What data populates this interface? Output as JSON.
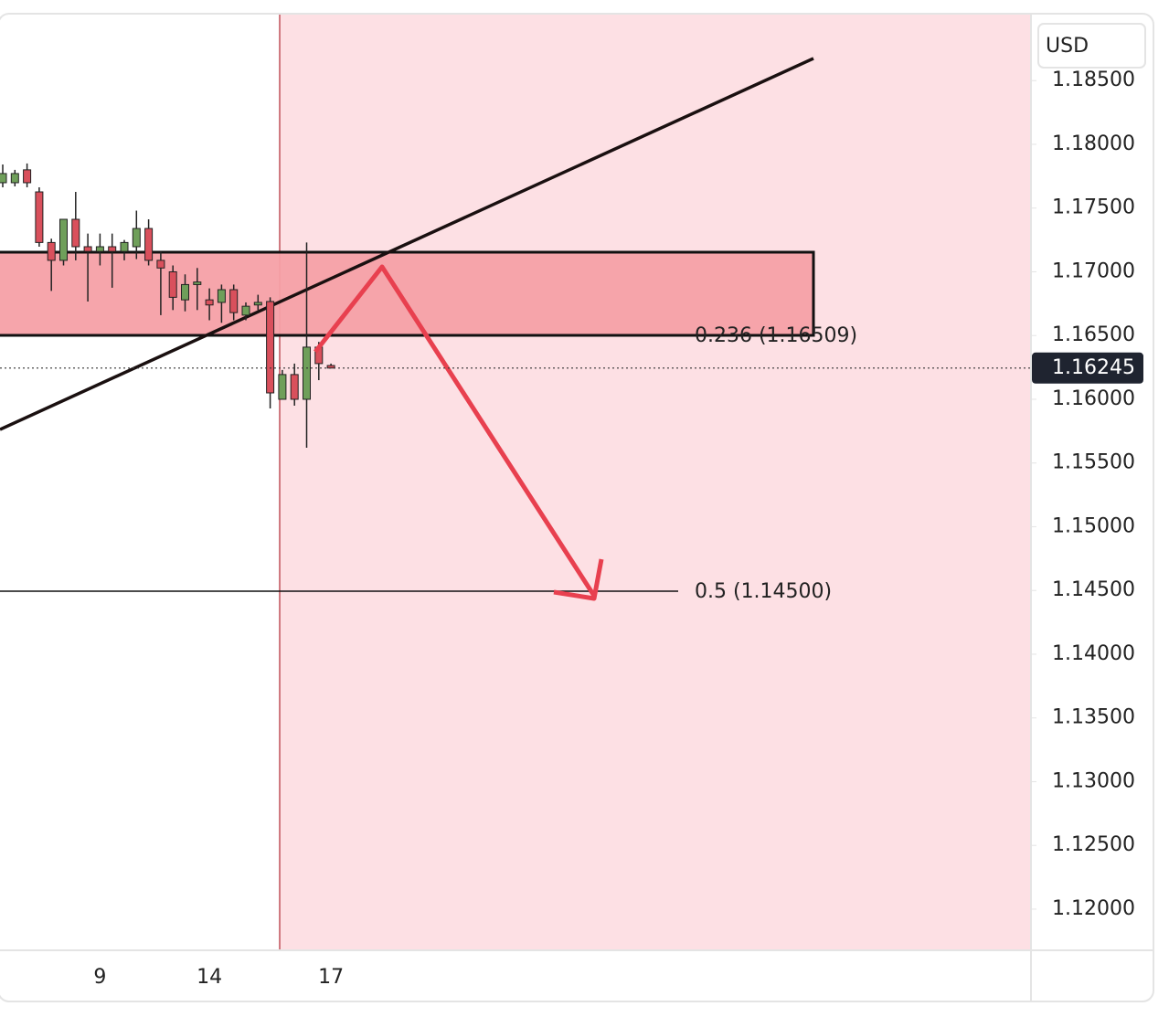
{
  "chart_data": {
    "type": "candlestick",
    "currency": "USD",
    "categories": [
      null,
      null,
      null,
      null,
      null,
      null,
      null,
      null,
      "9",
      null,
      null,
      null,
      null,
      null,
      null,
      null,
      null,
      "14",
      null,
      null,
      null,
      null,
      null,
      null,
      null,
      null,
      null,
      "17"
    ],
    "open": [
      1.17699,
      1.17699,
      1.178,
      1.17627,
      1.1723,
      1.1709,
      1.17412,
      1.17197,
      1.1716,
      1.17197,
      1.1716,
      1.17197,
      1.1734,
      1.1709,
      1.17,
      1.1678,
      1.169,
      1.1678,
      1.1676,
      1.1686,
      1.1666,
      1.1674,
      1.16767,
      1.16,
      1.16194,
      1.16,
      1.16409,
      1.16265
    ],
    "high": [
      1.17842,
      1.178,
      1.1785,
      1.17663,
      1.1726,
      1.1735,
      1.17627,
      1.173,
      1.173,
      1.173,
      1.1725,
      1.1748,
      1.17412,
      1.1716,
      1.1705,
      1.1698,
      1.1703,
      1.1687,
      1.169,
      1.169,
      1.1676,
      1.1682,
      1.168,
      1.1623,
      1.1628,
      1.1723,
      1.1645,
      1.1628
    ],
    "low": [
      1.17663,
      1.1767,
      1.17663,
      1.17197,
      1.1685,
      1.1705,
      1.1709,
      1.16767,
      1.1705,
      1.16875,
      1.1709,
      1.171,
      1.1705,
      1.1666,
      1.167,
      1.1669,
      1.167,
      1.1662,
      1.166,
      1.1662,
      1.1662,
      1.167,
      1.15928,
      1.16,
      1.1595,
      1.1562,
      1.1615,
      1.16245
    ],
    "close": [
      1.17771,
      1.17771,
      1.17699,
      1.1723,
      1.1709,
      1.17412,
      1.17197,
      1.1716,
      1.17197,
      1.1716,
      1.1723,
      1.1734,
      1.1709,
      1.1703,
      1.168,
      1.169,
      1.1692,
      1.1674,
      1.1686,
      1.1668,
      1.1673,
      1.1676,
      1.1605,
      1.16194,
      1.16,
      1.16409,
      1.1628,
      1.16245
    ],
    "up_color": "#6f9f5a",
    "down_color": "#d9505c",
    "current_price": 1.16245,
    "ylim": [
      1.11677,
      1.19025
    ],
    "yticks": [
      {
        "value": 1.185,
        "label": "1.18500"
      },
      {
        "value": 1.18,
        "label": "1.18000"
      },
      {
        "value": 1.175,
        "label": "1.17500"
      },
      {
        "value": 1.17,
        "label": "1.17000"
      },
      {
        "value": 1.165,
        "label": "1.16500"
      },
      {
        "value": 1.16,
        "label": "1.16000"
      },
      {
        "value": 1.155,
        "label": "1.15500"
      },
      {
        "value": 1.15,
        "label": "1.15000"
      },
      {
        "value": 1.145,
        "label": "1.14500"
      },
      {
        "value": 1.14,
        "label": "1.14000"
      },
      {
        "value": 1.135,
        "label": "1.13500"
      },
      {
        "value": 1.13,
        "label": "1.13000"
      },
      {
        "value": 1.125,
        "label": "1.12500"
      },
      {
        "value": 1.12,
        "label": "1.12000"
      }
    ],
    "annotations": [
      "0.236 (1.16509)",
      "0.5 (1.14500)"
    ]
  }
}
